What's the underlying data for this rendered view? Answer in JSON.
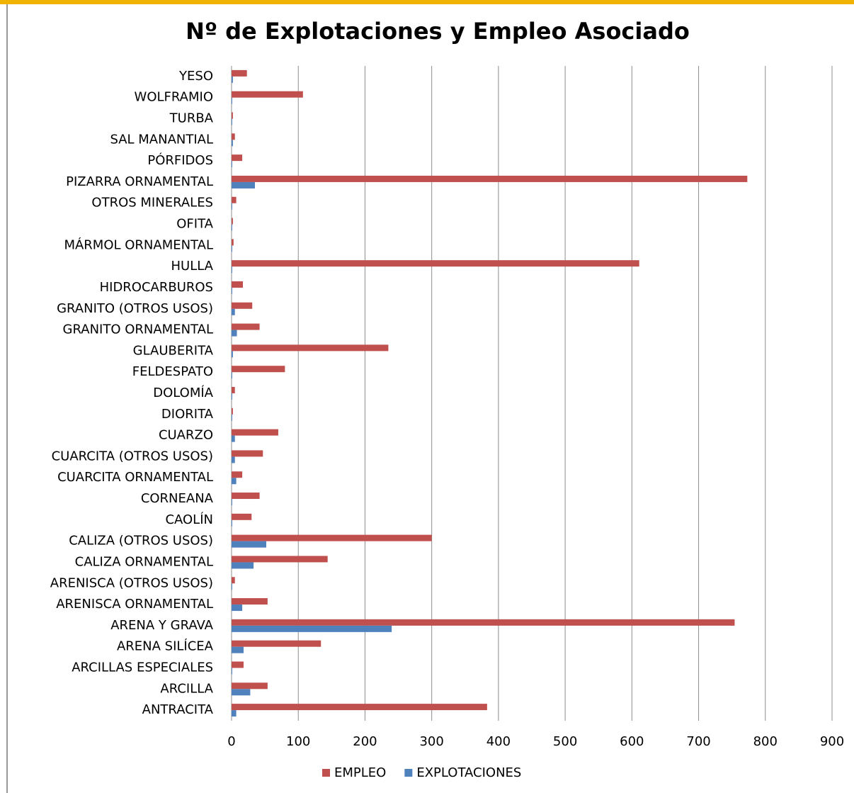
{
  "chart_data": {
    "type": "barh",
    "title": "Nº de Explotaciones y Empleo Asociado",
    "categories": [
      "ANTRACITA",
      "ARCILLA",
      "ARCILLAS ESPECIALES",
      "ARENA SILÍCEA",
      "ARENA Y GRAVA",
      "ARENISCA ORNAMENTAL",
      "ARENISCA (OTROS USOS)",
      "CALIZA ORNAMENTAL",
      "CALIZA (OTROS USOS)",
      "CAOLÍN",
      "CORNEANA",
      "CUARCITA ORNAMENTAL",
      "CUARCITA (OTROS USOS)",
      "CUARZO",
      "DIORITA",
      "DOLOMÍA",
      "FELDESPATO",
      "GLAUBERITA",
      "GRANITO ORNAMENTAL",
      "GRANITO (OTROS USOS)",
      "HIDROCARBUROS",
      "HULLA",
      "MÁRMOL ORNAMENTAL",
      "OFITA",
      "OTROS MINERALES",
      "PIZARRA ORNAMENTAL",
      "PÓRFIDOS",
      "SAL MANANTIAL",
      "TURBA",
      "WOLFRAMIO",
      "YESO"
    ],
    "series": [
      {
        "name": "EMPLEO",
        "color": "#c0504d",
        "values": [
          383,
          54,
          18,
          134,
          754,
          54,
          5,
          144,
          300,
          30,
          42,
          16,
          47,
          70,
          2,
          5,
          80,
          235,
          42,
          31,
          17,
          611,
          3,
          2,
          7,
          773,
          16,
          5,
          2,
          107,
          23
        ]
      },
      {
        "name": "EXPLOTACIONES",
        "color": "#4f81bd",
        "values": [
          7,
          28,
          1,
          18,
          240,
          16,
          1,
          33,
          52,
          1,
          1,
          7,
          5,
          5,
          1,
          1,
          1,
          2,
          8,
          5,
          1,
          1,
          1,
          1,
          1,
          35,
          1,
          2,
          1,
          1,
          2
        ]
      }
    ],
    "xlim": [
      0,
      900
    ],
    "xticks": [
      0,
      100,
      200,
      300,
      400,
      500,
      600,
      700,
      800,
      900
    ],
    "grid": true,
    "legend": "bottom"
  }
}
